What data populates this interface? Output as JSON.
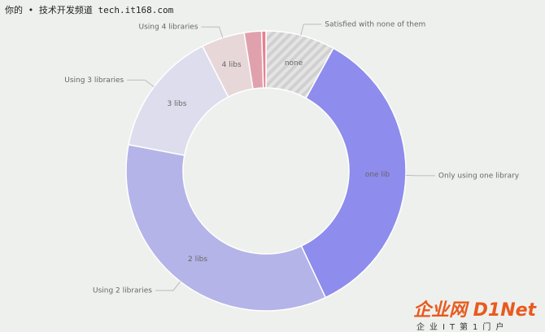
{
  "chart_data": {
    "type": "donut",
    "categories": [
      "Satisfied with none of them",
      "Only using one library",
      "Using 2 libraries",
      "Using 3 libraries",
      "Using 4 libraries",
      null,
      null
    ],
    "inner_labels": [
      "none",
      "one lib",
      "2 libs",
      "3 libs",
      "4 libs",
      null,
      null
    ],
    "values": [
      8,
      35,
      35,
      14.5,
      5,
      2,
      0.5
    ],
    "colors": [
      "url(#hatch)",
      "#8e8cec",
      "#b4b4e8",
      "#dddded",
      "#e8d7d9",
      "#e0a1ad",
      "#e87e8e"
    ]
  },
  "watermark": {
    "top": "你的 • 技术开发频道 tech.it168.com",
    "logo": "企业网 D1Net",
    "logo_sub": "企业IT第1门户"
  }
}
